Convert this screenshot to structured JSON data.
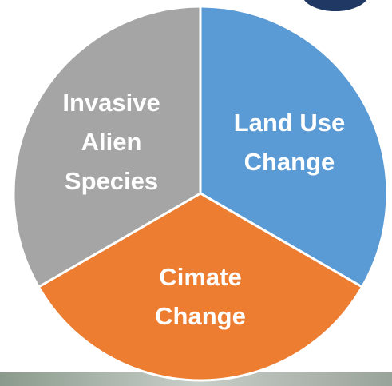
{
  "chart_data": {
    "type": "pie",
    "categories": [
      "Land Use Change",
      "Cimate Change",
      "Invasive Alien Species"
    ],
    "values": [
      33.3,
      33.3,
      33.3
    ],
    "colors": [
      "#5b9bd5",
      "#ed7d31",
      "#a5a5a5"
    ]
  }
}
